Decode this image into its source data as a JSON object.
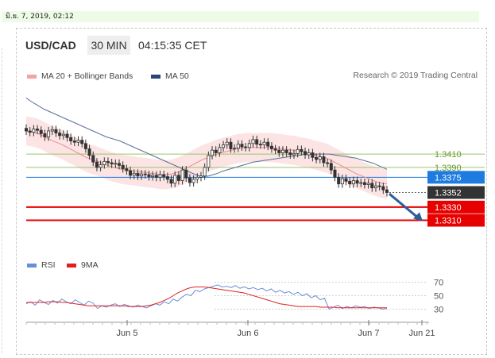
{
  "date_text": "มิ.ย. 7, 2019, 02:12",
  "header": {
    "pair": "USD/CAD",
    "timeframe": "30 MIN",
    "time": "04:15:35 CET"
  },
  "legend": {
    "ma20": {
      "label": "MA 20 + Bollinger Bands",
      "color": "#f4a3a3"
    },
    "ma50": {
      "label": "MA 50",
      "color": "#27457a"
    }
  },
  "credit": "Research © 2019 Trading Central",
  "rsi_legend": {
    "rsi": {
      "label": "RSI",
      "color": "#6b8fd6"
    },
    "ma9": {
      "label": "9MA",
      "color": "#e02020"
    }
  },
  "chart_data": {
    "type": "candlestick",
    "x_ticks": [
      "Jun 5",
      "Jun 6",
      "Jun 7",
      "Jun 21"
    ],
    "price_ylim": [
      1.3295,
      1.3475
    ],
    "levels": [
      {
        "label": "1.3410",
        "value": 1.341,
        "kind": "resistance",
        "color": "#9ac46a"
      },
      {
        "label": "1.3390",
        "value": 1.339,
        "kind": "resistance",
        "color": "#9ac46a"
      },
      {
        "label": "1.3375",
        "value": 1.3375,
        "kind": "pivot",
        "color": "#1e7be0"
      },
      {
        "label": "1.3352",
        "value": 1.3352,
        "kind": "last",
        "color": "#333333"
      },
      {
        "label": "1.3330",
        "value": 1.333,
        "kind": "support",
        "color": "#e60000"
      },
      {
        "label": "1.3310",
        "value": 1.331,
        "kind": "support",
        "color": "#e60000"
      }
    ],
    "close": [
      1.3445,
      1.3443,
      1.3448,
      1.3446,
      1.3441,
      1.3436,
      1.3445,
      1.3447,
      1.3442,
      1.3438,
      1.344,
      1.3435,
      1.343,
      1.3428,
      1.3431,
      1.3426,
      1.3418,
      1.3408,
      1.3398,
      1.339,
      1.3394,
      1.3399,
      1.3397,
      1.3395,
      1.3396,
      1.3393,
      1.3388,
      1.3385,
      1.3378,
      1.3381,
      1.3377,
      1.338,
      1.3379,
      1.3376,
      1.3378,
      1.3375,
      1.3379,
      1.3376,
      1.3372,
      1.3366,
      1.3378,
      1.337,
      1.3386,
      1.3374,
      1.3367,
      1.3372,
      1.3375,
      1.3377,
      1.339,
      1.3408,
      1.3416,
      1.3412,
      1.342,
      1.3424,
      1.3428,
      1.3418,
      1.3419,
      1.3425,
      1.3421,
      1.342,
      1.3426,
      1.3432,
      1.3425,
      1.3424,
      1.3428,
      1.3422,
      1.3418,
      1.3416,
      1.3412,
      1.3416,
      1.3412,
      1.3409,
      1.3411,
      1.3417,
      1.3414,
      1.3409,
      1.3412,
      1.3405,
      1.3402,
      1.3406,
      1.3397,
      1.3396,
      1.3386,
      1.3375,
      1.3365,
      1.3373,
      1.3369,
      1.3365,
      1.337,
      1.3366,
      1.3367,
      1.3364,
      1.3366,
      1.3359,
      1.3362,
      1.3361,
      1.3356,
      1.3352
    ],
    "ma50": [
      1.3495,
      1.349,
      1.3486,
      1.3482,
      1.3478,
      1.3475,
      1.3472,
      1.3469,
      1.3466,
      1.3463,
      1.346,
      1.3457,
      1.3454,
      1.3451,
      1.3448,
      1.3445,
      1.3442,
      1.3439,
      1.3436,
      1.3434,
      1.3432,
      1.343,
      1.3427,
      1.3424,
      1.3421,
      1.3418,
      1.3415,
      1.3412,
      1.3409,
      1.3406,
      1.3403,
      1.34,
      1.3397,
      1.3394,
      1.3391,
      1.3388,
      1.3385,
      1.3382,
      1.3379,
      1.3377,
      1.3376,
      1.3377,
      1.3379,
      1.3381,
      1.3384,
      1.3386,
      1.3388,
      1.339,
      1.3392,
      1.3394,
      1.3396,
      1.3398,
      1.3399,
      1.34,
      1.3401,
      1.3402,
      1.3403,
      1.3404,
      1.3405,
      1.3406,
      1.3407,
      1.3408,
      1.3409,
      1.341,
      1.341,
      1.341,
      1.341,
      1.341,
      1.341,
      1.3409,
      1.3408,
      1.3407,
      1.3406,
      1.3405,
      1.3404,
      1.3402,
      1.34,
      1.3398,
      1.3396,
      1.3393,
      1.339,
      1.3387
    ],
    "ma20": [
      1.3445,
      1.3444,
      1.3442,
      1.3439,
      1.3435,
      1.3431,
      1.3428,
      1.3425,
      1.3421,
      1.3417,
      1.3413,
      1.3409,
      1.3405,
      1.3402,
      1.34,
      1.3397,
      1.3394,
      1.3391,
      1.3389,
      1.3387,
      1.3386,
      1.3385,
      1.3384,
      1.3383,
      1.3382,
      1.3381,
      1.338,
      1.3379,
      1.3379,
      1.338,
      1.3382,
      1.3385,
      1.3389,
      1.3393,
      1.3397,
      1.3401,
      1.3404,
      1.3407,
      1.341,
      1.3412,
      1.3414,
      1.3416,
      1.3418,
      1.3419,
      1.342,
      1.342,
      1.342,
      1.342,
      1.342,
      1.342,
      1.3419,
      1.3418,
      1.3417,
      1.3416,
      1.3415,
      1.3413,
      1.3412,
      1.341,
      1.3408,
      1.3406,
      1.3404,
      1.34,
      1.3396,
      1.3392,
      1.3388,
      1.3384,
      1.338,
      1.3377,
      1.3374,
      1.3371,
      1.3368,
      1.3366,
      1.3365
    ],
    "rsi_ticks": [
      70,
      50,
      30
    ],
    "rsi_ylim": [
      20,
      80
    ],
    "rsi": [
      38,
      41,
      36,
      44,
      40,
      37,
      43,
      39,
      45,
      41,
      38,
      44,
      40,
      36,
      42,
      39,
      31,
      35,
      33,
      36,
      38,
      34,
      37,
      35,
      33,
      36,
      34,
      32,
      35,
      38,
      36,
      41,
      38,
      45,
      42,
      48,
      52,
      50,
      58,
      56,
      60,
      62,
      64,
      66,
      63,
      64,
      62,
      65,
      61,
      63,
      60,
      62,
      59,
      61,
      57,
      60,
      55,
      58,
      54,
      56,
      52,
      55,
      50,
      53,
      47,
      50,
      44,
      46,
      30,
      33,
      36,
      31,
      34,
      32,
      35,
      33,
      34,
      31,
      33,
      32,
      30,
      31
    ],
    "ma9": [
      40,
      40,
      40,
      40,
      40,
      41,
      41,
      41,
      40,
      40,
      39,
      38,
      37,
      36,
      35,
      35,
      35,
      35,
      35,
      35,
      35,
      35,
      35,
      34,
      34,
      34,
      34,
      35,
      36,
      38,
      40,
      43,
      46,
      50,
      54,
      57,
      60,
      62,
      63,
      63,
      63,
      62,
      61,
      60,
      59,
      58,
      57,
      56,
      55,
      54,
      52,
      50,
      48,
      46,
      44,
      42,
      40,
      38,
      37,
      36,
      35,
      34,
      34,
      34,
      34,
      34,
      33,
      33,
      33,
      33,
      32,
      32,
      32,
      32,
      32,
      32,
      32,
      32,
      32,
      32,
      32,
      32
    ]
  }
}
